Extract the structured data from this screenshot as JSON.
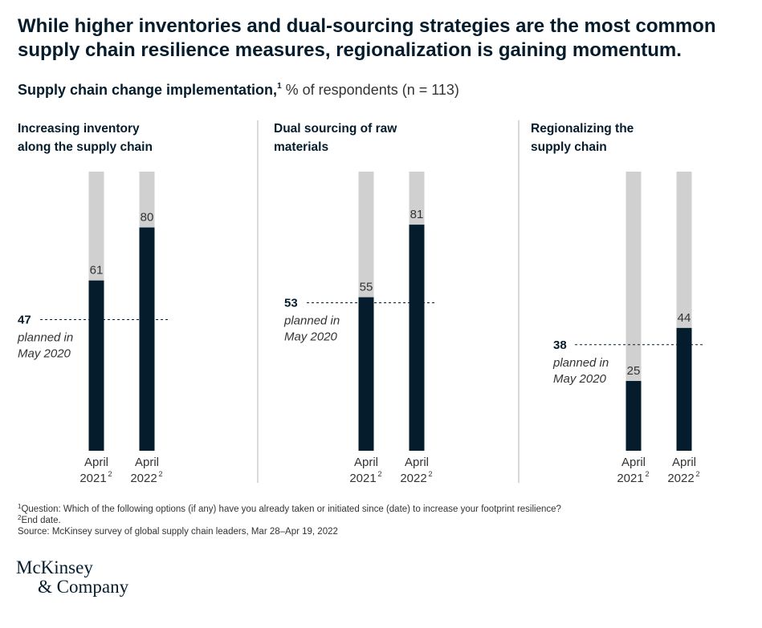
{
  "headline": {
    "line1": "While higher inventories and dual-sourcing strategies are the most common",
    "line2": "supply chain resilience measures, regionalization is gaining momentum."
  },
  "subtitle": {
    "bold": "Supply chain change implementation,",
    "sup": "1",
    "unit": " % of respondents (n = 113)"
  },
  "chart_data": {
    "type": "bar",
    "categories": [
      "April 2021",
      "April 2022"
    ],
    "ylim": [
      0,
      100
    ],
    "colors": {
      "bar": "#051c2c",
      "track": "#d0d0d0",
      "divider": "#b3b3b3"
    },
    "panels": [
      {
        "title": [
          "Increasing inventory",
          "along the supply chain"
        ],
        "values": [
          61,
          80
        ],
        "planned": {
          "value": 47,
          "label": [
            "planned in",
            "May 2020"
          ]
        }
      },
      {
        "title": [
          "Dual sourcing of raw",
          "materials"
        ],
        "values": [
          55,
          81
        ],
        "planned": {
          "value": 53,
          "label": [
            "planned in",
            "May 2020"
          ]
        }
      },
      {
        "title": [
          "Regionalizing the",
          "supply chain"
        ],
        "values": [
          25,
          44
        ],
        "planned": {
          "value": 38,
          "label": [
            "planned in",
            "May 2020"
          ]
        }
      }
    ],
    "x_labels": [
      {
        "top": "April",
        "bottom": "2021",
        "sup": "2"
      },
      {
        "top": "April",
        "bottom": "2022",
        "sup": "2"
      }
    ]
  },
  "footnotes": {
    "q_sup": "1",
    "question": "Question: Which of the following options (if any) have you already taken or initiated since (date) to increase your footprint resilience?",
    "end_sup": "2",
    "end": "End date.",
    "source": " Source: McKinsey survey of global supply chain leaders, Mar 28–Apr 19, 2022"
  },
  "logo": {
    "line1": "McKinsey",
    "line2": "& Company"
  }
}
